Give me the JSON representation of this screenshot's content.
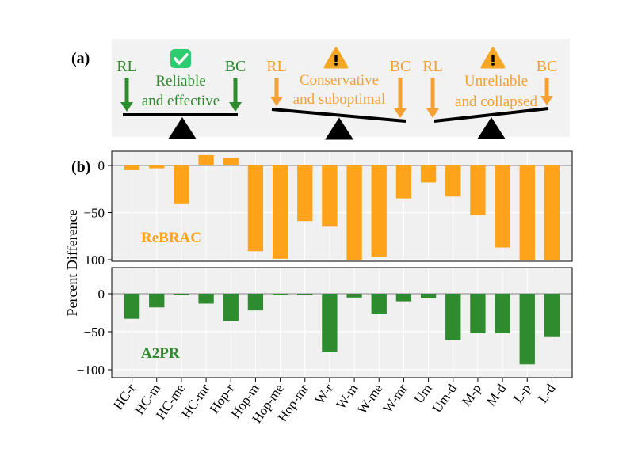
{
  "panel_a": {
    "label": "(a)",
    "scales": [
      {
        "left": "RL",
        "right": "BC",
        "caption_line1": "Reliable",
        "caption_line2": "and effective",
        "icon": "check-icon",
        "color": "#2e8b2e"
      },
      {
        "left": "RL",
        "right": "BC",
        "caption_line1": "Conservative",
        "caption_line2": "and suboptimal",
        "icon": "warning-icon",
        "color": "#f5a033"
      },
      {
        "left": "RL",
        "right": "BC",
        "caption_line1": "Unreliable",
        "caption_line2": "and collapsed",
        "icon": "warning-icon",
        "color": "#f5a033"
      }
    ]
  },
  "panel_b": {
    "label": "(b)"
  },
  "chart_data": {
    "type": "bar",
    "ylabel": "Percent Difference",
    "categories": [
      "HC-r",
      "HC-m",
      "HC-me",
      "HC-mr",
      "Hop-r",
      "Hop-m",
      "Hop-me",
      "Hop-mr",
      "W-r",
      "W-m",
      "W-me",
      "W-mr",
      "Um",
      "Um-d",
      "M-p",
      "M-d",
      "L-p",
      "L-d"
    ],
    "ylim": [
      -102,
      14
    ],
    "yticks": [
      0,
      -50,
      -100
    ],
    "series": [
      {
        "name": "ReBRAC",
        "color": "#ffa31a",
        "values": [
          -5,
          -3,
          -41,
          11,
          8,
          -91,
          -99,
          -59,
          -65,
          -100,
          -97,
          -35,
          -18,
          -33,
          -53,
          -87,
          -100,
          -100
        ]
      },
      {
        "name": "A2PR",
        "color": "#2e8b2e",
        "values": [
          -33,
          -18,
          -2,
          -13,
          -36,
          -22,
          -1,
          -2,
          -76,
          -5,
          -26,
          -10,
          -6,
          -61,
          -52,
          -52,
          -93,
          -57
        ]
      }
    ]
  }
}
